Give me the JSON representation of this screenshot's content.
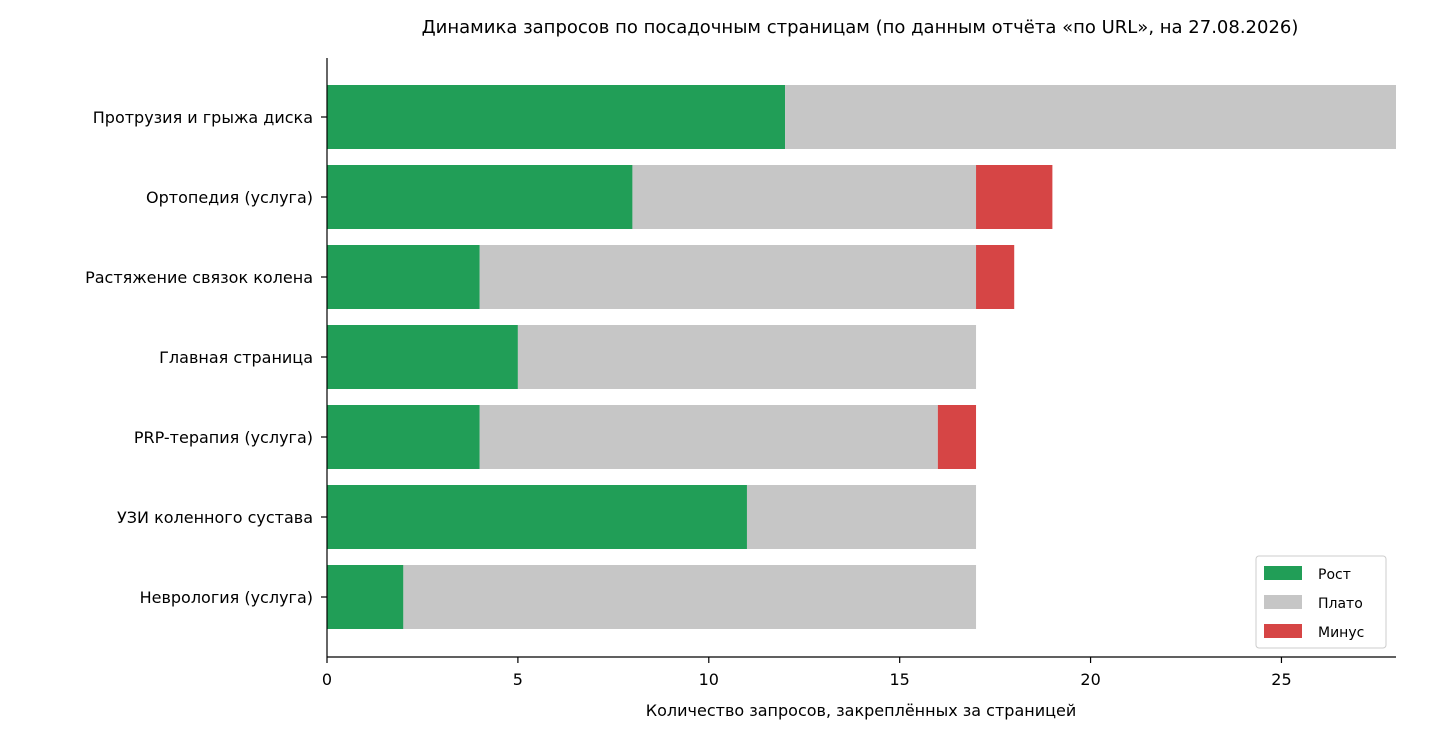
{
  "chart_data": {
    "type": "bar",
    "orientation": "horizontal",
    "stacked": true,
    "title": "Динамика запросов по посадочным страницам (по данным отчёта «по URL», на 27.08.2026)",
    "xlabel": "Количество запросов, закреплённых за страницей",
    "ylabel": "",
    "xlim": [
      0,
      28
    ],
    "xticks": [
      0,
      5,
      10,
      15,
      20,
      25
    ],
    "grid": false,
    "legend_position": "bottom-right",
    "categories": [
      "Протрузия и грыжа диска",
      "Ортопедия (услуга)",
      "Растяжение связок колена",
      "Главная страница",
      "PRP-терапия (услуга)",
      "УЗИ коленного сустава",
      "Неврология (услуга)"
    ],
    "series": [
      {
        "name": "Рост",
        "color": "#219e57",
        "values": [
          12,
          8,
          4,
          5,
          4,
          11,
          2
        ]
      },
      {
        "name": "Плато",
        "color": "#c6c6c6",
        "values": [
          16,
          9,
          13,
          12,
          12,
          6,
          15
        ]
      },
      {
        "name": "Минус",
        "color": "#d64545",
        "values": [
          0,
          2,
          1,
          0,
          1,
          0,
          0
        ]
      }
    ]
  }
}
